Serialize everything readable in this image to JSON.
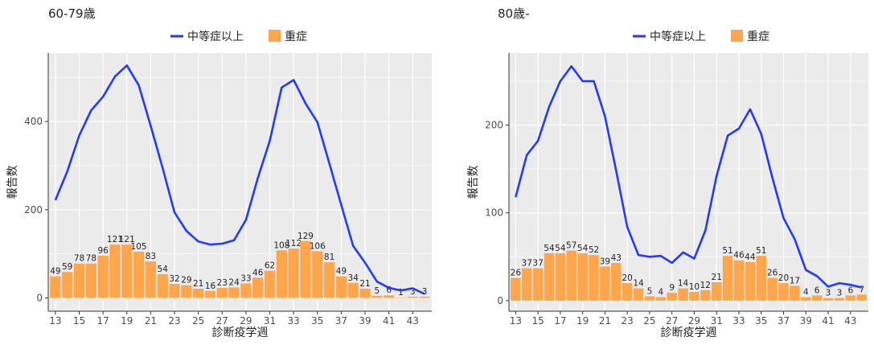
{
  "legend": {
    "line_label": "中等症以上",
    "bar_label": "重症"
  },
  "colors": {
    "line": "#1f3bff",
    "bar": "#ffa64d",
    "panel_bg": "#ebebeb",
    "grid": "#ffffff"
  },
  "chart_data": [
    {
      "type": "bar+line",
      "title": "60-79歳",
      "xlabel": "診断疫学週",
      "ylabel": "報告数",
      "x": [
        13,
        14,
        15,
        16,
        17,
        18,
        19,
        20,
        21,
        22,
        23,
        24,
        25,
        26,
        27,
        28,
        29,
        30,
        31,
        32,
        33,
        34,
        35,
        36,
        37,
        38,
        39,
        40,
        41,
        42,
        43,
        44
      ],
      "x_ticks": [
        13,
        15,
        17,
        19,
        21,
        23,
        25,
        27,
        29,
        31,
        33,
        35,
        37,
        39,
        41,
        43
      ],
      "y_ticks": [
        0,
        200,
        400
      ],
      "ylim": [
        -30,
        555
      ],
      "legend_position": "top",
      "grid": true,
      "series": [
        {
          "name": "中等症以上",
          "kind": "line",
          "values": [
            222,
            287,
            368,
            425,
            456,
            502,
            527,
            482,
            390,
            295,
            194,
            152,
            128,
            121,
            123,
            131,
            177,
            272,
            356,
            477,
            494,
            441,
            398,
            305,
            211,
            118,
            80,
            37,
            23,
            17,
            22,
            9
          ]
        },
        {
          "name": "重症",
          "kind": "bar",
          "values": [
            49,
            59,
            78,
            78,
            96,
            121,
            121,
            105,
            83,
            54,
            32,
            29,
            21,
            16,
            23,
            24,
            33,
            46,
            62,
            108,
            112,
            129,
            106,
            81,
            49,
            34,
            21,
            5,
            6,
            1,
            3,
            3
          ]
        }
      ]
    },
    {
      "type": "bar+line",
      "title": "80歳-",
      "xlabel": "診断疫学週",
      "ylabel": "報告数",
      "x": [
        13,
        14,
        15,
        16,
        17,
        18,
        19,
        20,
        21,
        22,
        23,
        24,
        25,
        26,
        27,
        28,
        29,
        30,
        31,
        32,
        33,
        34,
        35,
        36,
        37,
        38,
        39,
        40,
        41,
        42,
        43,
        44
      ],
      "x_ticks": [
        13,
        15,
        17,
        19,
        21,
        23,
        25,
        27,
        29,
        31,
        33,
        35,
        37,
        39,
        41,
        43
      ],
      "y_ticks": [
        0,
        100,
        200
      ],
      "ylim": [
        -12,
        282
      ],
      "legend_position": "top",
      "grid": true,
      "series": [
        {
          "name": "中等症以上",
          "kind": "line",
          "values": [
            118,
            166,
            182,
            221,
            250,
            267,
            250,
            250,
            210,
            148,
            84,
            52,
            50,
            51,
            43,
            55,
            48,
            80,
            142,
            188,
            196,
            218,
            190,
            140,
            94,
            70,
            35,
            28,
            16,
            20,
            18,
            15
          ]
        },
        {
          "name": "重症",
          "kind": "bar",
          "values": [
            26,
            37,
            37,
            54,
            54,
            57,
            54,
            52,
            39,
            43,
            20,
            14,
            5,
            4,
            9,
            14,
            10,
            12,
            21,
            51,
            46,
            44,
            51,
            26,
            20,
            17,
            4,
            6,
            3,
            3,
            6,
            7
          ]
        }
      ]
    }
  ]
}
